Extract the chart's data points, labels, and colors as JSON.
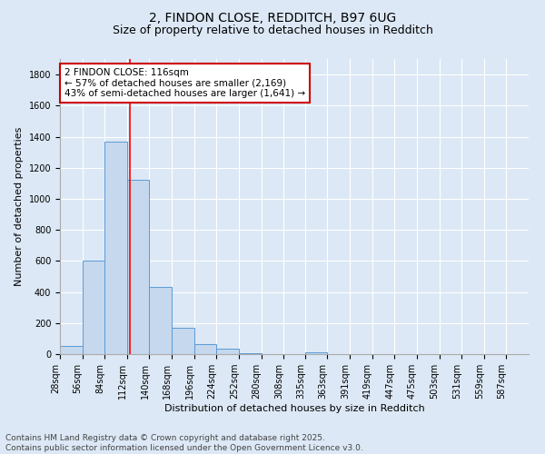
{
  "title1": "2, FINDON CLOSE, REDDITCH, B97 6UG",
  "title2": "Size of property relative to detached houses in Redditch",
  "xlabel": "Distribution of detached houses by size in Redditch",
  "ylabel": "Number of detached properties",
  "bin_edges": [
    28,
    56,
    84,
    112,
    140,
    168,
    196,
    224,
    252,
    280,
    308,
    335,
    363,
    391,
    419,
    447,
    475,
    503,
    531,
    559,
    587
  ],
  "bar_heights": [
    55,
    600,
    1370,
    1120,
    430,
    170,
    65,
    35,
    5,
    0,
    0,
    10,
    0,
    0,
    0,
    0,
    0,
    0,
    0,
    0
  ],
  "bar_color": "#c5d8ee",
  "bar_edge_color": "#5b9bd5",
  "background_color": "#dce8f5",
  "red_line_x": 116,
  "annotation_title": "2 FINDON CLOSE: 116sqm",
  "annotation_line1": "← 57% of detached houses are smaller (2,169)",
  "annotation_line2": "43% of semi-detached houses are larger (1,641) →",
  "annotation_box_color": "#ffffff",
  "annotation_box_edge": "#cc0000",
  "ylim": [
    0,
    1900
  ],
  "yticks": [
    0,
    200,
    400,
    600,
    800,
    1000,
    1200,
    1400,
    1600,
    1800
  ],
  "footer1": "Contains HM Land Registry data © Crown copyright and database right 2025.",
  "footer2": "Contains public sector information licensed under the Open Government Licence v3.0.",
  "title_fontsize": 10,
  "subtitle_fontsize": 9,
  "axis_label_fontsize": 8,
  "tick_fontsize": 7,
  "annotation_fontsize": 7.5,
  "footer_fontsize": 6.5
}
